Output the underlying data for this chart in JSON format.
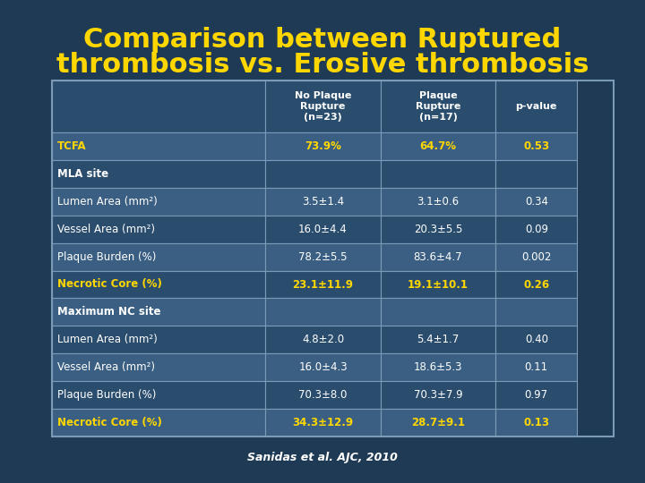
{
  "title_line1": "Comparison between Ruptured",
  "title_line2": "thrombosis vs. Erosive thrombosis",
  "title_color": "#FFD700",
  "bg_color": "#1e3a54",
  "cell_bg_light": "#3a5f82",
  "cell_bg_dark": "#2a4d6e",
  "col_headers": [
    "No Plaque\nRupture\n(n=23)",
    "Plaque\nRupture\n(n=17)",
    "p-value"
  ],
  "rows": [
    {
      "label": "TCFA",
      "values": [
        "73.9%",
        "64.7%",
        "0.53"
      ],
      "section": false,
      "highlight": true,
      "label_color": "#FFD700",
      "val_color": "#FFD700"
    },
    {
      "label": "MLA site",
      "values": [
        "",
        "",
        ""
      ],
      "section": true,
      "highlight": false,
      "label_color": "#FFFFFF",
      "val_color": "#FFFFFF"
    },
    {
      "label": "Lumen Area (mm²)",
      "values": [
        "3.5±1.4",
        "3.1±0.6",
        "0.34"
      ],
      "section": false,
      "highlight": false,
      "label_color": "#FFFFFF",
      "val_color": "#FFFFFF"
    },
    {
      "label": "Vessel Area (mm²)",
      "values": [
        "16.0±4.4",
        "20.3±5.5",
        "0.09"
      ],
      "section": false,
      "highlight": false,
      "label_color": "#FFFFFF",
      "val_color": "#FFFFFF"
    },
    {
      "label": "Plaque Burden (%)",
      "values": [
        "78.2±5.5",
        "83.6±4.7",
        "0.002"
      ],
      "section": false,
      "highlight": false,
      "label_color": "#FFFFFF",
      "val_color": "#FFFFFF"
    },
    {
      "label": "Necrotic Core (%)",
      "values": [
        "23.1±11.9",
        "19.1±10.1",
        "0.26"
      ],
      "section": false,
      "highlight": true,
      "label_color": "#FFD700",
      "val_color": "#FFD700"
    },
    {
      "label": "Maximum NC site",
      "values": [
        "",
        "",
        ""
      ],
      "section": true,
      "highlight": false,
      "label_color": "#FFFFFF",
      "val_color": "#FFFFFF"
    },
    {
      "label": "Lumen Area (mm²)",
      "values": [
        "4.8±2.0",
        "5.4±1.7",
        "0.40"
      ],
      "section": false,
      "highlight": false,
      "label_color": "#FFFFFF",
      "val_color": "#FFFFFF"
    },
    {
      "label": "Vessel Area (mm²)",
      "values": [
        "16.0±4.3",
        "18.6±5.3",
        "0.11"
      ],
      "section": false,
      "highlight": false,
      "label_color": "#FFFFFF",
      "val_color": "#FFFFFF"
    },
    {
      "label": "Plaque Burden (%)",
      "values": [
        "70.3±8.0",
        "70.3±7.9",
        "0.97"
      ],
      "section": false,
      "highlight": false,
      "label_color": "#FFFFFF",
      "val_color": "#FFFFFF"
    },
    {
      "label": "Necrotic Core (%)",
      "values": [
        "34.3±12.9",
        "28.7±9.1",
        "0.13"
      ],
      "section": false,
      "highlight": true,
      "label_color": "#FFD700",
      "val_color": "#FFD700"
    }
  ],
  "footer": "Sanidas et al. AJC, 2010",
  "line_color": "#7a9ab8",
  "white": "#FFFFFF",
  "header_text_color": "#FFFFFF"
}
